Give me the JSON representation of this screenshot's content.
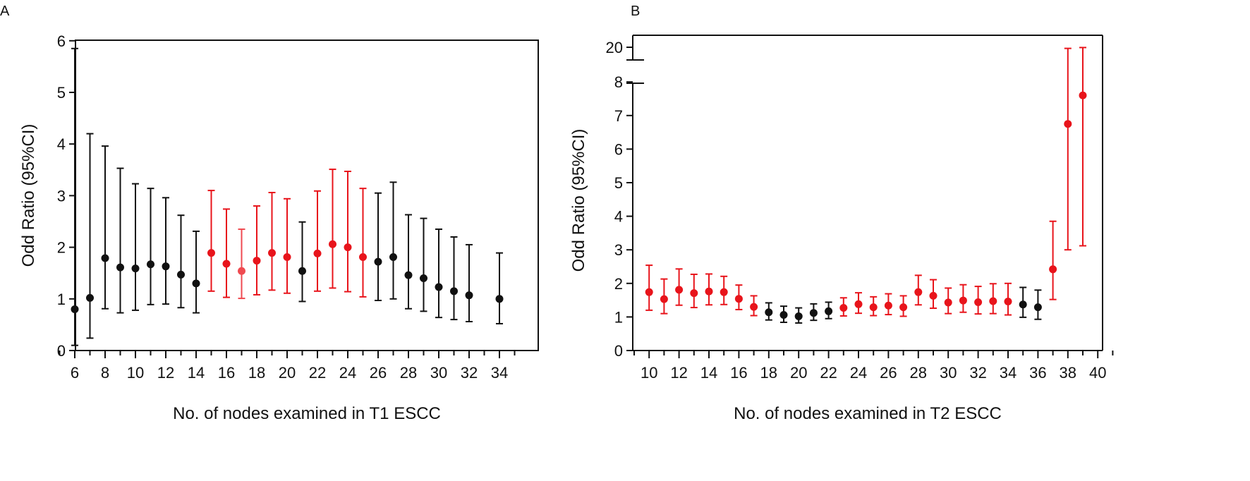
{
  "chart_data": [
    {
      "panel_label": "A",
      "type": "errorbar",
      "xlabel": "No. of nodes examined in T1 ESCC",
      "ylabel": "Odd Ratio (95%CI)",
      "xlim": [
        5,
        35.5
      ],
      "ylim": [
        0,
        6
      ],
      "xticks": [
        6,
        8,
        10,
        12,
        14,
        16,
        18,
        20,
        22,
        24,
        26,
        28,
        30,
        32,
        34
      ],
      "yticks": [
        0,
        1,
        2,
        3,
        4,
        5,
        6
      ],
      "colors": {
        "significant": "#e8141b",
        "significant_light": "#ef4a50",
        "nonsignificant": "#111111"
      },
      "points": [
        {
          "x": 6,
          "or": 0.8,
          "lo": 0.1,
          "hi": 5.85,
          "color": "black"
        },
        {
          "x": 7,
          "or": 1.02,
          "lo": 0.24,
          "hi": 4.2,
          "color": "black"
        },
        {
          "x": 8,
          "or": 1.79,
          "lo": 0.81,
          "hi": 3.96,
          "color": "black"
        },
        {
          "x": 9,
          "or": 1.61,
          "lo": 0.73,
          "hi": 3.53,
          "color": "black"
        },
        {
          "x": 10,
          "or": 1.59,
          "lo": 0.78,
          "hi": 3.23,
          "color": "black"
        },
        {
          "x": 11,
          "or": 1.67,
          "lo": 0.89,
          "hi": 3.14,
          "color": "black"
        },
        {
          "x": 12,
          "or": 1.63,
          "lo": 0.9,
          "hi": 2.96,
          "color": "black"
        },
        {
          "x": 13,
          "or": 1.47,
          "lo": 0.83,
          "hi": 2.62,
          "color": "black"
        },
        {
          "x": 14,
          "or": 1.3,
          "lo": 0.73,
          "hi": 2.31,
          "color": "black"
        },
        {
          "x": 15,
          "or": 1.89,
          "lo": 1.15,
          "hi": 3.1,
          "color": "red"
        },
        {
          "x": 16,
          "or": 1.68,
          "lo": 1.03,
          "hi": 2.74,
          "color": "red"
        },
        {
          "x": 17,
          "or": 1.54,
          "lo": 1.01,
          "hi": 2.35,
          "color": "lightred"
        },
        {
          "x": 18,
          "or": 1.74,
          "lo": 1.08,
          "hi": 2.8,
          "color": "red"
        },
        {
          "x": 19,
          "or": 1.89,
          "lo": 1.17,
          "hi": 3.06,
          "color": "red"
        },
        {
          "x": 20,
          "or": 1.81,
          "lo": 1.11,
          "hi": 2.94,
          "color": "red"
        },
        {
          "x": 21,
          "or": 1.54,
          "lo": 0.95,
          "hi": 2.49,
          "color": "black"
        },
        {
          "x": 22,
          "or": 1.88,
          "lo": 1.15,
          "hi": 3.09,
          "color": "red"
        },
        {
          "x": 23,
          "or": 2.06,
          "lo": 1.21,
          "hi": 3.51,
          "color": "red"
        },
        {
          "x": 24,
          "or": 2.0,
          "lo": 1.14,
          "hi": 3.47,
          "color": "red"
        },
        {
          "x": 25,
          "or": 1.81,
          "lo": 1.04,
          "hi": 3.14,
          "color": "red"
        },
        {
          "x": 26,
          "or": 1.72,
          "lo": 0.97,
          "hi": 3.05,
          "color": "black"
        },
        {
          "x": 27,
          "or": 1.81,
          "lo": 1.0,
          "hi": 3.26,
          "color": "black"
        },
        {
          "x": 28,
          "or": 1.46,
          "lo": 0.81,
          "hi": 2.63,
          "color": "black"
        },
        {
          "x": 29,
          "or": 1.4,
          "lo": 0.76,
          "hi": 2.56,
          "color": "black"
        },
        {
          "x": 30,
          "or": 1.23,
          "lo": 0.64,
          "hi": 2.35,
          "color": "black"
        },
        {
          "x": 31,
          "or": 1.15,
          "lo": 0.6,
          "hi": 2.2,
          "color": "black"
        },
        {
          "x": 32,
          "or": 1.07,
          "lo": 0.56,
          "hi": 2.05,
          "color": "black"
        },
        {
          "x": 34,
          "or": 1.0,
          "lo": 0.52,
          "hi": 1.89,
          "color": "black"
        }
      ]
    },
    {
      "panel_label": "B",
      "type": "errorbar",
      "xlabel": "No. of nodes examined in T2 ESCC",
      "ylabel": "Odd Ratio (95%CI)",
      "xlim": [
        9,
        41
      ],
      "ylim": [
        0,
        8
      ],
      "axis_break": {
        "between": [
          8,
          20
        ]
      },
      "xticks": [
        10,
        12,
        14,
        16,
        18,
        20,
        22,
        24,
        26,
        28,
        30,
        32,
        34,
        36,
        38,
        40
      ],
      "yticks": [
        0,
        1,
        2,
        3,
        4,
        5,
        6,
        7,
        8
      ],
      "yticks_upper": [
        20
      ],
      "colors": {
        "significant": "#e8141b",
        "nonsignificant": "#111111"
      },
      "points": [
        {
          "x": 10,
          "or": 1.74,
          "lo": 1.2,
          "hi": 2.54,
          "color": "red"
        },
        {
          "x": 11,
          "or": 1.53,
          "lo": 1.1,
          "hi": 2.13,
          "color": "red"
        },
        {
          "x": 12,
          "or": 1.81,
          "lo": 1.35,
          "hi": 2.43,
          "color": "red"
        },
        {
          "x": 13,
          "or": 1.71,
          "lo": 1.28,
          "hi": 2.27,
          "color": "red"
        },
        {
          "x": 14,
          "or": 1.76,
          "lo": 1.36,
          "hi": 2.28,
          "color": "red"
        },
        {
          "x": 15,
          "or": 1.74,
          "lo": 1.37,
          "hi": 2.21,
          "color": "red"
        },
        {
          "x": 16,
          "or": 1.54,
          "lo": 1.22,
          "hi": 1.95,
          "color": "red"
        },
        {
          "x": 17,
          "or": 1.3,
          "lo": 1.04,
          "hi": 1.63,
          "color": "red"
        },
        {
          "x": 18,
          "or": 1.14,
          "lo": 0.91,
          "hi": 1.42,
          "color": "black"
        },
        {
          "x": 19,
          "or": 1.06,
          "lo": 0.84,
          "hi": 1.32,
          "color": "black"
        },
        {
          "x": 20,
          "or": 1.02,
          "lo": 0.82,
          "hi": 1.27,
          "color": "black"
        },
        {
          "x": 21,
          "or": 1.12,
          "lo": 0.9,
          "hi": 1.39,
          "color": "black"
        },
        {
          "x": 22,
          "or": 1.17,
          "lo": 0.95,
          "hi": 1.44,
          "color": "black"
        },
        {
          "x": 23,
          "or": 1.27,
          "lo": 1.03,
          "hi": 1.57,
          "color": "red"
        },
        {
          "x": 24,
          "or": 1.38,
          "lo": 1.11,
          "hi": 1.72,
          "color": "red"
        },
        {
          "x": 25,
          "or": 1.29,
          "lo": 1.04,
          "hi": 1.6,
          "color": "red"
        },
        {
          "x": 26,
          "or": 1.34,
          "lo": 1.07,
          "hi": 1.69,
          "color": "red"
        },
        {
          "x": 27,
          "or": 1.29,
          "lo": 1.02,
          "hi": 1.63,
          "color": "red"
        },
        {
          "x": 28,
          "or": 1.74,
          "lo": 1.36,
          "hi": 2.24,
          "color": "red"
        },
        {
          "x": 29,
          "or": 1.63,
          "lo": 1.26,
          "hi": 2.11,
          "color": "red"
        },
        {
          "x": 30,
          "or": 1.43,
          "lo": 1.1,
          "hi": 1.86,
          "color": "red"
        },
        {
          "x": 31,
          "or": 1.49,
          "lo": 1.14,
          "hi": 1.96,
          "color": "red"
        },
        {
          "x": 32,
          "or": 1.44,
          "lo": 1.09,
          "hi": 1.91,
          "color": "red"
        },
        {
          "x": 33,
          "or": 1.47,
          "lo": 1.1,
          "hi": 1.99,
          "color": "red"
        },
        {
          "x": 34,
          "or": 1.46,
          "lo": 1.06,
          "hi": 2.0,
          "color": "red"
        },
        {
          "x": 35,
          "or": 1.37,
          "lo": 0.99,
          "hi": 1.88,
          "color": "black"
        },
        {
          "x": 36,
          "or": 1.29,
          "lo": 0.93,
          "hi": 1.8,
          "color": "black"
        },
        {
          "x": 37,
          "or": 2.42,
          "lo": 1.52,
          "hi": 3.85,
          "color": "red"
        },
        {
          "x": 38,
          "or": 6.75,
          "lo": 3.0,
          "hi": 19.6,
          "color": "red"
        },
        {
          "x": 39,
          "or": 7.6,
          "lo": 3.12,
          "hi": 19.9,
          "color": "red"
        }
      ]
    }
  ]
}
